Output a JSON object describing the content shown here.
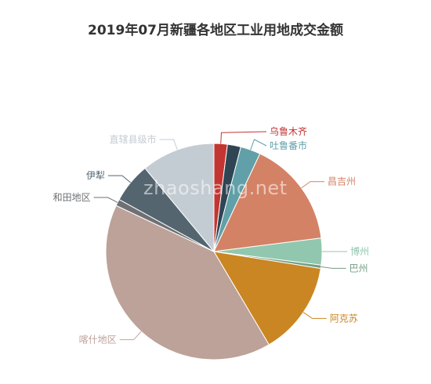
{
  "title": "2019年07月新疆各地区工业用地成交金额",
  "watermark": "zhaoshang.net",
  "chart_data": {
    "type": "pie",
    "title": "2019年07月新疆各地区工业用地成交金额",
    "start_angle_deg": 90,
    "direction": "clockwise",
    "series": [
      {
        "name": "乌鲁木齐",
        "value": 2.0,
        "color": "#c23531"
      },
      {
        "name": "",
        "value": 2.0,
        "color": "#2f4554"
      },
      {
        "name": "吐鲁番市",
        "value": 3.0,
        "color": "#61a0a8"
      },
      {
        "name": "昌吉州",
        "value": 16.0,
        "color": "#d48265"
      },
      {
        "name": "博州",
        "value": 4.0,
        "color": "#91c7ae"
      },
      {
        "name": "巴州",
        "value": 0.5,
        "color": "#749f83"
      },
      {
        "name": "阿克苏",
        "value": 14.0,
        "color": "#ca8622"
      },
      {
        "name": "喀什地区",
        "value": 40.5,
        "color": "#bda29a"
      },
      {
        "name": "和田地区",
        "value": 1.0,
        "color": "#6e7074"
      },
      {
        "name": "伊犁",
        "value": 6.0,
        "color": "#546570"
      },
      {
        "name": "直辖县级市",
        "value": 11.0,
        "color": "#c4ccd3"
      }
    ]
  }
}
